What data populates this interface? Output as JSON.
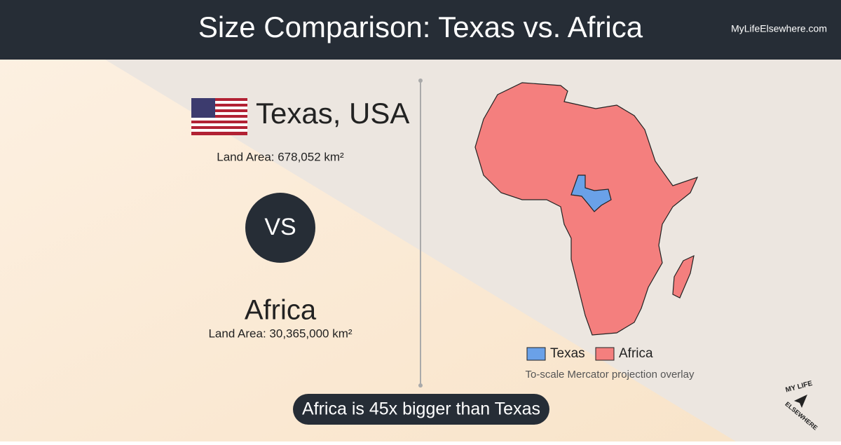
{
  "header": {
    "title": "Size Comparison: Texas vs. Africa",
    "site": "MyLifeElsewhere.com"
  },
  "left": {
    "place1": {
      "name": "Texas, USA",
      "area": "Land Area: 678,052 km²"
    },
    "vs": "VS",
    "place2": {
      "name": "Africa",
      "area": "Land Area: 30,365,000 km²"
    }
  },
  "map": {
    "legend": [
      "Texas",
      "Africa"
    ],
    "caption": "To-scale Mercator projection overlay"
  },
  "footer": {
    "summary": "Africa is 45x bigger than Texas"
  },
  "logo": {
    "line1": "MY LIFE",
    "line2": "ELSEWHERE"
  }
}
